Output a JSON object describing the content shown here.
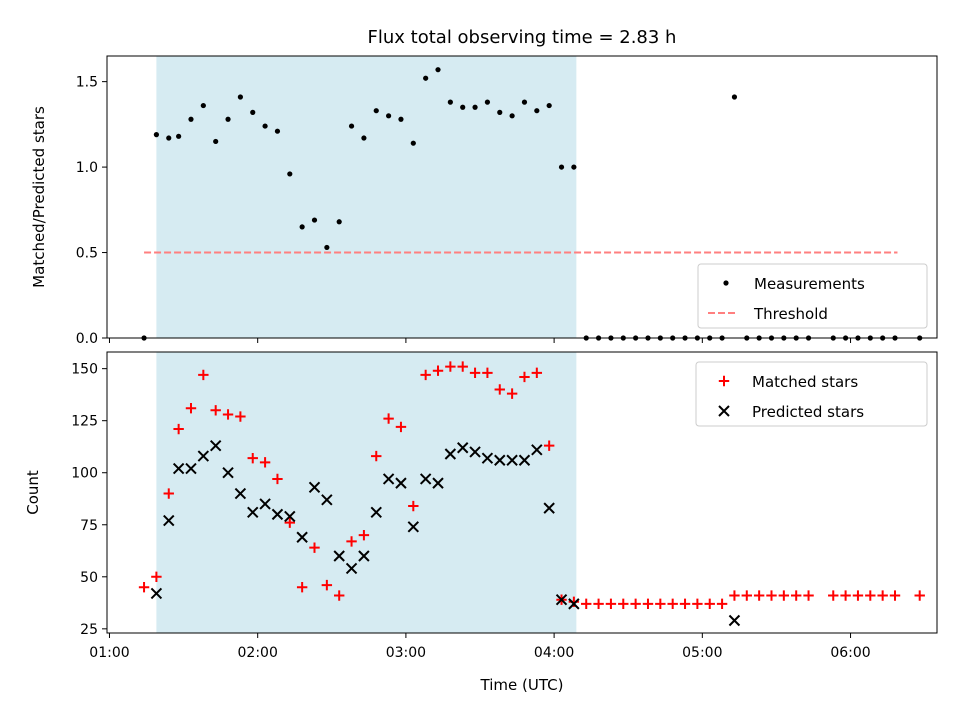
{
  "chart_data": {
    "title": "Flux total observing time = 2.83 h",
    "xlabel": "Time (UTC)",
    "x_ticks": [
      {
        "value": 60,
        "label": "01:00"
      },
      {
        "value": 120,
        "label": "02:00"
      },
      {
        "value": 180,
        "label": "03:00"
      },
      {
        "value": 240,
        "label": "04:00"
      },
      {
        "value": 300,
        "label": "05:00"
      },
      {
        "value": 360,
        "label": "06:00"
      }
    ],
    "xlim": [
      59,
      395
    ],
    "highlight_span": [
      79,
      249
    ],
    "highlight_color": "#add8e6",
    "panels": [
      {
        "type": "scatter",
        "ylabel": "Matched/Predicted stars",
        "ylim": [
          0,
          1.65
        ],
        "y_ticks": [
          {
            "value": 0,
            "label": "0.0"
          },
          {
            "value": 0.5,
            "label": "0.5"
          },
          {
            "value": 1.0,
            "label": "1.0"
          },
          {
            "value": 1.5,
            "label": "1.5"
          }
        ],
        "legend_position": "bottom-right",
        "series": [
          {
            "name": "Measurements",
            "marker": "dot",
            "color": "#000000",
            "points": [
              [
                74,
                0.0
              ],
              [
                79,
                1.19
              ],
              [
                84,
                1.17
              ],
              [
                88,
                1.18
              ],
              [
                93,
                1.28
              ],
              [
                98,
                1.36
              ],
              [
                103,
                1.15
              ],
              [
                108,
                1.28
              ],
              [
                113,
                1.41
              ],
              [
                118,
                1.32
              ],
              [
                123,
                1.24
              ],
              [
                128,
                1.21
              ],
              [
                133,
                0.96
              ],
              [
                138,
                0.65
              ],
              [
                143,
                0.69
              ],
              [
                148,
                0.53
              ],
              [
                153,
                0.68
              ],
              [
                158,
                1.24
              ],
              [
                163,
                1.17
              ],
              [
                168,
                1.33
              ],
              [
                173,
                1.3
              ],
              [
                178,
                1.28
              ],
              [
                183,
                1.14
              ],
              [
                188,
                1.52
              ],
              [
                193,
                1.57
              ],
              [
                198,
                1.38
              ],
              [
                203,
                1.35
              ],
              [
                208,
                1.35
              ],
              [
                213,
                1.38
              ],
              [
                218,
                1.32
              ],
              [
                223,
                1.3
              ],
              [
                228,
                1.38
              ],
              [
                233,
                1.33
              ],
              [
                238,
                1.36
              ],
              [
                243,
                1.0
              ],
              [
                248,
                1.0
              ],
              [
                253,
                0.0
              ],
              [
                258,
                0.0
              ],
              [
                263,
                0.0
              ],
              [
                268,
                0.0
              ],
              [
                273,
                0.0
              ],
              [
                278,
                0.0
              ],
              [
                283,
                0.0
              ],
              [
                288,
                0.0
              ],
              [
                293,
                0.0
              ],
              [
                298,
                0.0
              ],
              [
                303,
                0.0
              ],
              [
                308,
                0.0
              ],
              [
                313,
                1.41
              ],
              [
                318,
                0.0
              ],
              [
                323,
                0.0
              ],
              [
                328,
                0.0
              ],
              [
                333,
                0.0
              ],
              [
                338,
                0.0
              ],
              [
                343,
                0.0
              ],
              [
                353,
                0.0
              ],
              [
                358,
                0.0
              ],
              [
                363,
                0.0
              ],
              [
                368,
                0.0
              ],
              [
                373,
                0.0
              ],
              [
                378,
                0.0
              ],
              [
                388,
                0.0
              ]
            ]
          },
          {
            "name": "Threshold",
            "marker": "dashed-line",
            "color": "#ff7f7f",
            "x": [
              74,
              379
            ],
            "y": [
              0.5,
              0.5
            ]
          }
        ]
      },
      {
        "type": "scatter",
        "ylabel": "Count",
        "ylim": [
          23,
          158
        ],
        "y_ticks": [
          {
            "value": 25,
            "label": "25"
          },
          {
            "value": 50,
            "label": "50"
          },
          {
            "value": 75,
            "label": "75"
          },
          {
            "value": 100,
            "label": "100"
          },
          {
            "value": 125,
            "label": "125"
          },
          {
            "value": 150,
            "label": "150"
          }
        ],
        "legend_position": "top-right",
        "series": [
          {
            "name": "Matched stars",
            "marker": "plus",
            "color": "#ff0000",
            "points": [
              [
                74,
                45
              ],
              [
                79,
                50
              ],
              [
                84,
                90
              ],
              [
                88,
                121
              ],
              [
                93,
                131
              ],
              [
                98,
                147
              ],
              [
                103,
                130
              ],
              [
                108,
                128
              ],
              [
                113,
                127
              ],
              [
                118,
                107
              ],
              [
                123,
                105
              ],
              [
                128,
                97
              ],
              [
                133,
                76
              ],
              [
                138,
                45
              ],
              [
                143,
                64
              ],
              [
                148,
                46
              ],
              [
                153,
                41
              ],
              [
                158,
                67
              ],
              [
                163,
                70
              ],
              [
                168,
                108
              ],
              [
                173,
                126
              ],
              [
                178,
                122
              ],
              [
                183,
                84
              ],
              [
                188,
                147
              ],
              [
                193,
                149
              ],
              [
                198,
                151
              ],
              [
                203,
                151
              ],
              [
                208,
                148
              ],
              [
                213,
                148
              ],
              [
                218,
                140
              ],
              [
                223,
                138
              ],
              [
                228,
                146
              ],
              [
                233,
                148
              ],
              [
                238,
                113
              ],
              [
                243,
                39
              ],
              [
                248,
                38
              ],
              [
                253,
                37
              ],
              [
                258,
                37
              ],
              [
                263,
                37
              ],
              [
                268,
                37
              ],
              [
                273,
                37
              ],
              [
                278,
                37
              ],
              [
                283,
                37
              ],
              [
                288,
                37
              ],
              [
                293,
                37
              ],
              [
                298,
                37
              ],
              [
                303,
                37
              ],
              [
                308,
                37
              ],
              [
                313,
                41
              ],
              [
                318,
                41
              ],
              [
                323,
                41
              ],
              [
                328,
                41
              ],
              [
                333,
                41
              ],
              [
                338,
                41
              ],
              [
                343,
                41
              ],
              [
                353,
                41
              ],
              [
                358,
                41
              ],
              [
                363,
                41
              ],
              [
                368,
                41
              ],
              [
                373,
                41
              ],
              [
                378,
                41
              ],
              [
                388,
                41
              ]
            ]
          },
          {
            "name": "Predicted stars",
            "marker": "x",
            "color": "#000000",
            "points": [
              [
                79,
                42
              ],
              [
                84,
                77
              ],
              [
                88,
                102
              ],
              [
                93,
                102
              ],
              [
                98,
                108
              ],
              [
                103,
                113
              ],
              [
                108,
                100
              ],
              [
                113,
                90
              ],
              [
                118,
                81
              ],
              [
                123,
                85
              ],
              [
                128,
                80
              ],
              [
                133,
                79
              ],
              [
                138,
                69
              ],
              [
                143,
                93
              ],
              [
                148,
                87
              ],
              [
                153,
                60
              ],
              [
                158,
                54
              ],
              [
                163,
                60
              ],
              [
                168,
                81
              ],
              [
                173,
                97
              ],
              [
                178,
                95
              ],
              [
                183,
                74
              ],
              [
                188,
                97
              ],
              [
                193,
                95
              ],
              [
                198,
                109
              ],
              [
                203,
                112
              ],
              [
                208,
                110
              ],
              [
                213,
                107
              ],
              [
                218,
                106
              ],
              [
                223,
                106
              ],
              [
                228,
                106
              ],
              [
                233,
                111
              ],
              [
                238,
                83
              ],
              [
                243,
                39
              ],
              [
                248,
                37
              ],
              [
                313,
                29
              ]
            ]
          }
        ]
      }
    ]
  }
}
